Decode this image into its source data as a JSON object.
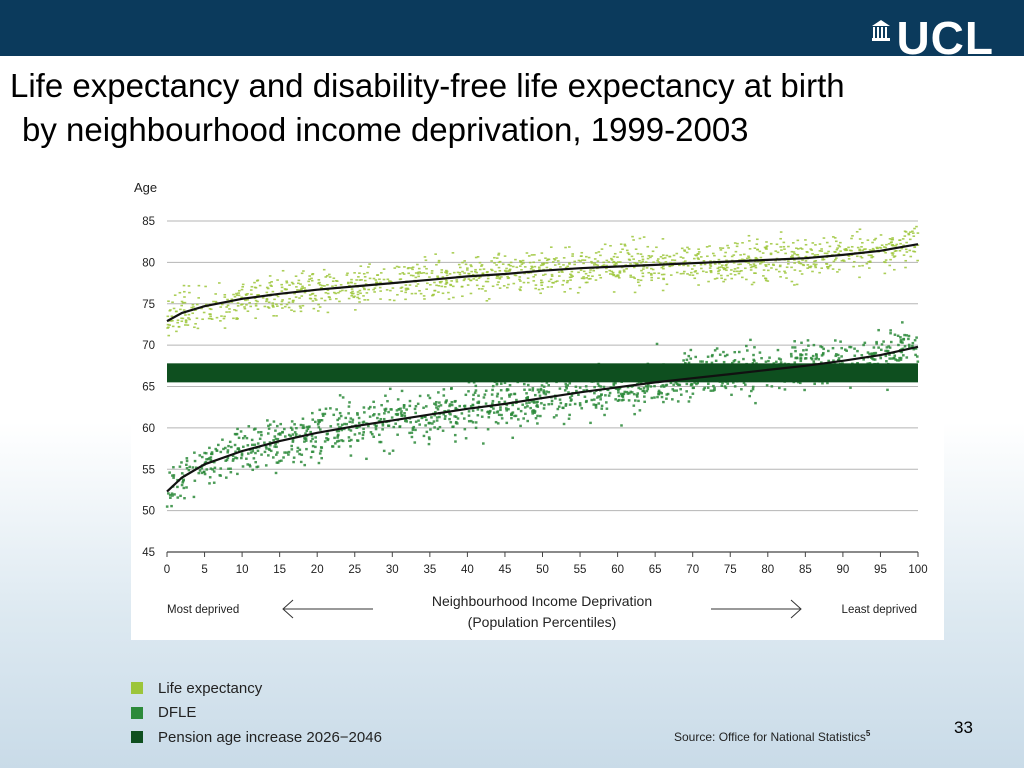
{
  "slide": {
    "title_line1": "Life expectancy and disability-free life expectancy at birth",
    "title_line2": "by neighbourhood income deprivation, 1999-2003",
    "logo_text": "UCL",
    "page_number": "33",
    "source_label": "Source: Office for National Statistics",
    "source_footnote": "5"
  },
  "chart_data": {
    "type": "scatter",
    "title": "",
    "ylabel": "Age",
    "xlabel_line1": "Neighbourhood Income Deprivation",
    "xlabel_line2": "(Population Percentiles)",
    "left_annotation": "Most deprived",
    "right_annotation": "Least deprived",
    "xlim": [
      0,
      100
    ],
    "ylim": [
      45,
      85
    ],
    "x_ticks": [
      "0",
      "5",
      "10",
      "15",
      "20",
      "25",
      "30",
      "35",
      "40",
      "45",
      "50",
      "55",
      "60",
      "65",
      "70",
      "75",
      "80",
      "85",
      "90",
      "95",
      "100"
    ],
    "y_ticks": [
      "45",
      "50",
      "55",
      "60",
      "65",
      "70",
      "75",
      "80",
      "85"
    ],
    "grid": "horizontal",
    "legend_placement": "bottom-left",
    "colors": {
      "life_expectancy": "#9cc53a",
      "dfle": "#2c8a3a",
      "pension_band": "#0e4f1f",
      "trend": "#111111",
      "grid": "#b5b5b5"
    },
    "series": [
      {
        "name": "Life expectancy",
        "kind": "scatter",
        "spread": 2.2,
        "trend_x": [
          0,
          2,
          5,
          10,
          15,
          20,
          25,
          30,
          35,
          40,
          45,
          50,
          55,
          60,
          65,
          70,
          75,
          80,
          85,
          90,
          95,
          100
        ],
        "trend_y": [
          72.9,
          73.9,
          74.7,
          75.6,
          76.2,
          76.7,
          77.1,
          77.5,
          77.9,
          78.3,
          78.6,
          79.0,
          79.3,
          79.5,
          79.7,
          79.9,
          80.1,
          80.3,
          80.5,
          80.9,
          81.4,
          82.2
        ]
      },
      {
        "name": "DFLE",
        "kind": "scatter",
        "spread": 2.8,
        "trend_x": [
          0,
          2,
          5,
          10,
          15,
          20,
          25,
          30,
          35,
          40,
          45,
          50,
          55,
          60,
          65,
          70,
          75,
          80,
          85,
          90,
          95,
          100
        ],
        "trend_y": [
          52.3,
          54.0,
          55.6,
          57.2,
          58.4,
          59.4,
          60.2,
          60.9,
          61.6,
          62.3,
          62.9,
          63.6,
          64.3,
          64.9,
          65.5,
          66.0,
          66.5,
          67.0,
          67.5,
          68.1,
          68.8,
          69.8
        ]
      },
      {
        "name": "Pension age increase 2026−2046",
        "kind": "band",
        "y_range": [
          65.5,
          67.8
        ]
      }
    ]
  }
}
